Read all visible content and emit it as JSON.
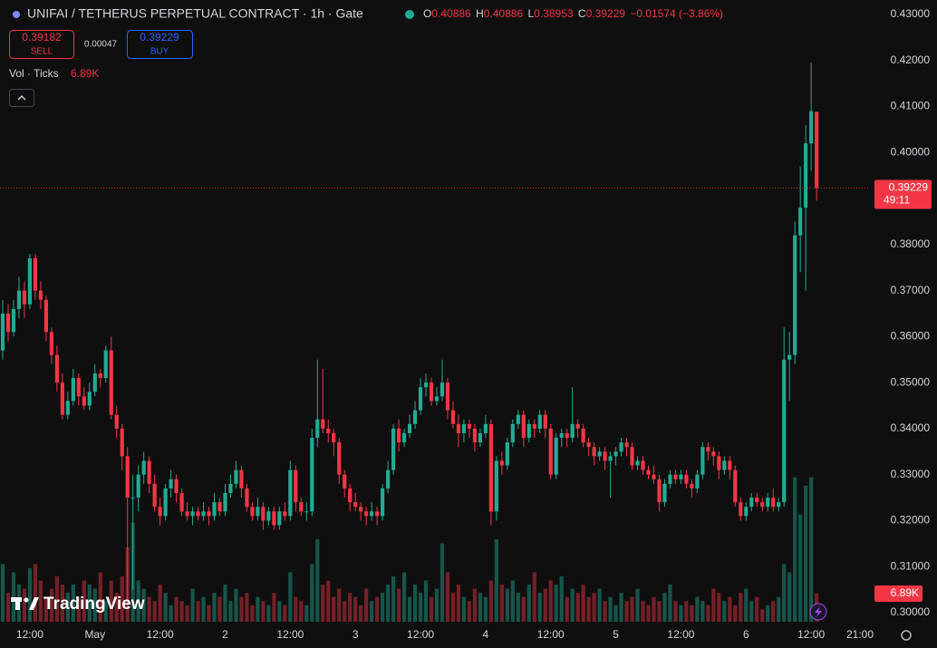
{
  "chart_data": {
    "type": "candlestick",
    "title": "UNIFAI / TETHERUS PERPETUAL CONTRACT · 1h · Gate",
    "ohlc_labels": [
      "O",
      "H",
      "L",
      "C"
    ],
    "change_label": "−0.01574 (−3.86%)",
    "sell": {
      "price": 0.39182,
      "label": "SELL"
    },
    "spread": 0.00047,
    "buy": {
      "price": 0.39229,
      "label": "BUY"
    },
    "volume_title": "Vol · Ticks",
    "volume_last_label": "6.89K",
    "countdown": "49:11",
    "brand": "TradingView",
    "up_color": "#22ab94",
    "down_color": "#f23645",
    "grid": false,
    "xlim": [
      -0.5,
      159.5
    ],
    "xticks": [
      {
        "value": 5,
        "label": "12:00"
      },
      {
        "value": 17,
        "label": "May"
      },
      {
        "value": 29,
        "label": "12:00"
      },
      {
        "value": 41,
        "label": "2"
      },
      {
        "value": 53,
        "label": "12:00"
      },
      {
        "value": 65,
        "label": "3"
      },
      {
        "value": 77,
        "label": "12:00"
      },
      {
        "value": 89,
        "label": "4"
      },
      {
        "value": 101,
        "label": "12:00"
      },
      {
        "value": 113,
        "label": "5"
      },
      {
        "value": 125,
        "label": "12:00"
      },
      {
        "value": 137,
        "label": "6"
      },
      {
        "value": 149,
        "label": "12:00"
      },
      {
        "value": 158,
        "label": "21:00"
      }
    ],
    "ylim": [
      0.3,
      0.43
    ],
    "yticks": [
      {
        "value": 0.3,
        "label": "0.30000"
      },
      {
        "value": 0.31,
        "label": "0.31000"
      },
      {
        "value": 0.32,
        "label": "0.32000"
      },
      {
        "value": 0.33,
        "label": "0.33000"
      },
      {
        "value": 0.34,
        "label": "0.34000"
      },
      {
        "value": 0.35,
        "label": "0.35000"
      },
      {
        "value": 0.36,
        "label": "0.36000"
      },
      {
        "value": 0.37,
        "label": "0.37000"
      },
      {
        "value": 0.38,
        "label": "0.38000"
      },
      {
        "value": 0.39,
        "label": "0.39000"
      },
      {
        "value": 0.4,
        "label": "0.40000"
      },
      {
        "value": 0.41,
        "label": "0.41000"
      },
      {
        "value": 0.42,
        "label": "0.42000"
      },
      {
        "value": 0.43,
        "label": "0.43000"
      }
    ],
    "vlim": [
      0,
      38000
    ],
    "ohlc": [
      [
        0.357,
        0.368,
        0.355,
        0.365
      ],
      [
        0.365,
        0.367,
        0.359,
        0.361
      ],
      [
        0.361,
        0.368,
        0.36,
        0.366
      ],
      [
        0.366,
        0.373,
        0.364,
        0.37
      ],
      [
        0.37,
        0.372,
        0.364,
        0.367
      ],
      [
        0.367,
        0.378,
        0.366,
        0.377
      ],
      [
        0.377,
        0.378,
        0.368,
        0.37
      ],
      [
        0.37,
        0.372,
        0.366,
        0.368
      ],
      [
        0.368,
        0.369,
        0.359,
        0.361
      ],
      [
        0.361,
        0.362,
        0.354,
        0.356
      ],
      [
        0.356,
        0.358,
        0.348,
        0.35
      ],
      [
        0.35,
        0.352,
        0.342,
        0.343
      ],
      [
        0.343,
        0.348,
        0.342,
        0.346
      ],
      [
        0.346,
        0.353,
        0.345,
        0.351
      ],
      [
        0.351,
        0.352,
        0.345,
        0.347
      ],
      [
        0.347,
        0.349,
        0.344,
        0.345
      ],
      [
        0.345,
        0.35,
        0.344,
        0.348
      ],
      [
        0.348,
        0.354,
        0.347,
        0.352
      ],
      [
        0.352,
        0.353,
        0.349,
        0.351
      ],
      [
        0.351,
        0.358,
        0.35,
        0.357
      ],
      [
        0.357,
        0.36,
        0.342,
        0.343
      ],
      [
        0.343,
        0.345,
        0.338,
        0.34
      ],
      [
        0.34,
        0.341,
        0.331,
        0.334
      ],
      [
        0.334,
        0.336,
        0.301,
        0.325
      ],
      [
        0.325,
        0.33,
        0.305,
        0.325
      ],
      [
        0.325,
        0.332,
        0.322,
        0.33
      ],
      [
        0.33,
        0.335,
        0.328,
        0.333
      ],
      [
        0.333,
        0.334,
        0.326,
        0.328
      ],
      [
        0.328,
        0.33,
        0.322,
        0.323
      ],
      [
        0.323,
        0.325,
        0.319,
        0.321
      ],
      [
        0.321,
        0.328,
        0.32,
        0.327
      ],
      [
        0.327,
        0.331,
        0.325,
        0.329
      ],
      [
        0.329,
        0.33,
        0.324,
        0.326
      ],
      [
        0.326,
        0.327,
        0.321,
        0.322
      ],
      [
        0.322,
        0.324,
        0.32,
        0.321
      ],
      [
        0.321,
        0.323,
        0.319,
        0.322
      ],
      [
        0.322,
        0.323,
        0.32,
        0.321
      ],
      [
        0.321,
        0.324,
        0.32,
        0.322
      ],
      [
        0.322,
        0.323,
        0.319,
        0.321
      ],
      [
        0.321,
        0.326,
        0.32,
        0.324
      ],
      [
        0.324,
        0.325,
        0.321,
        0.322
      ],
      [
        0.322,
        0.328,
        0.321,
        0.326
      ],
      [
        0.326,
        0.33,
        0.325,
        0.328
      ],
      [
        0.328,
        0.333,
        0.327,
        0.331
      ],
      [
        0.331,
        0.332,
        0.325,
        0.327
      ],
      [
        0.327,
        0.328,
        0.322,
        0.323
      ],
      [
        0.323,
        0.324,
        0.32,
        0.321
      ],
      [
        0.321,
        0.325,
        0.32,
        0.323
      ],
      [
        0.323,
        0.324,
        0.318,
        0.32
      ],
      [
        0.32,
        0.323,
        0.319,
        0.322
      ],
      [
        0.322,
        0.323,
        0.318,
        0.319
      ],
      [
        0.319,
        0.323,
        0.318,
        0.322
      ],
      [
        0.322,
        0.324,
        0.32,
        0.321
      ],
      [
        0.321,
        0.333,
        0.32,
        0.331
      ],
      [
        0.331,
        0.332,
        0.322,
        0.324
      ],
      [
        0.324,
        0.325,
        0.321,
        0.322
      ],
      [
        0.322,
        0.324,
        0.32,
        0.322
      ],
      [
        0.322,
        0.34,
        0.321,
        0.338
      ],
      [
        0.338,
        0.355,
        0.336,
        0.342
      ],
      [
        0.342,
        0.353,
        0.339,
        0.34
      ],
      [
        0.34,
        0.342,
        0.337,
        0.339
      ],
      [
        0.339,
        0.34,
        0.334,
        0.337
      ],
      [
        0.337,
        0.338,
        0.328,
        0.33
      ],
      [
        0.33,
        0.331,
        0.325,
        0.327
      ],
      [
        0.327,
        0.328,
        0.322,
        0.324
      ],
      [
        0.324,
        0.326,
        0.322,
        0.323
      ],
      [
        0.323,
        0.324,
        0.32,
        0.322
      ],
      [
        0.322,
        0.323,
        0.319,
        0.321
      ],
      [
        0.321,
        0.324,
        0.32,
        0.322
      ],
      [
        0.322,
        0.323,
        0.319,
        0.321
      ],
      [
        0.321,
        0.328,
        0.32,
        0.327
      ],
      [
        0.327,
        0.333,
        0.326,
        0.331
      ],
      [
        0.331,
        0.341,
        0.33,
        0.34
      ],
      [
        0.34,
        0.342,
        0.335,
        0.337
      ],
      [
        0.337,
        0.34,
        0.336,
        0.339
      ],
      [
        0.339,
        0.343,
        0.338,
        0.341
      ],
      [
        0.341,
        0.346,
        0.34,
        0.344
      ],
      [
        0.344,
        0.351,
        0.343,
        0.349
      ],
      [
        0.349,
        0.352,
        0.347,
        0.35
      ],
      [
        0.35,
        0.351,
        0.345,
        0.346
      ],
      [
        0.346,
        0.349,
        0.345,
        0.347
      ],
      [
        0.347,
        0.355,
        0.346,
        0.35
      ],
      [
        0.35,
        0.351,
        0.342,
        0.344
      ],
      [
        0.344,
        0.346,
        0.34,
        0.341
      ],
      [
        0.341,
        0.343,
        0.336,
        0.339
      ],
      [
        0.339,
        0.342,
        0.337,
        0.341
      ],
      [
        0.341,
        0.342,
        0.338,
        0.34
      ],
      [
        0.34,
        0.341,
        0.335,
        0.337
      ],
      [
        0.337,
        0.34,
        0.336,
        0.339
      ],
      [
        0.339,
        0.343,
        0.338,
        0.341
      ],
      [
        0.341,
        0.342,
        0.319,
        0.322
      ],
      [
        0.322,
        0.334,
        0.32,
        0.333
      ],
      [
        0.333,
        0.335,
        0.33,
        0.332
      ],
      [
        0.332,
        0.338,
        0.331,
        0.337
      ],
      [
        0.337,
        0.342,
        0.336,
        0.341
      ],
      [
        0.341,
        0.344,
        0.34,
        0.343
      ],
      [
        0.343,
        0.344,
        0.336,
        0.338
      ],
      [
        0.338,
        0.342,
        0.337,
        0.341
      ],
      [
        0.341,
        0.342,
        0.338,
        0.34
      ],
      [
        0.34,
        0.344,
        0.339,
        0.343
      ],
      [
        0.343,
        0.344,
        0.338,
        0.34
      ],
      [
        0.34,
        0.341,
        0.329,
        0.33
      ],
      [
        0.33,
        0.339,
        0.329,
        0.338
      ],
      [
        0.338,
        0.34,
        0.336,
        0.339
      ],
      [
        0.339,
        0.34,
        0.336,
        0.338
      ],
      [
        0.338,
        0.349,
        0.337,
        0.341
      ],
      [
        0.341,
        0.342,
        0.338,
        0.34
      ],
      [
        0.34,
        0.341,
        0.336,
        0.337
      ],
      [
        0.337,
        0.338,
        0.334,
        0.336
      ],
      [
        0.336,
        0.337,
        0.332,
        0.334
      ],
      [
        0.334,
        0.336,
        0.333,
        0.335
      ],
      [
        0.335,
        0.336,
        0.331,
        0.333
      ],
      [
        0.333,
        0.335,
        0.325,
        0.334
      ],
      [
        0.334,
        0.336,
        0.332,
        0.335
      ],
      [
        0.335,
        0.338,
        0.334,
        0.337
      ],
      [
        0.337,
        0.338,
        0.334,
        0.336
      ],
      [
        0.336,
        0.337,
        0.331,
        0.332
      ],
      [
        0.332,
        0.334,
        0.331,
        0.333
      ],
      [
        0.333,
        0.334,
        0.33,
        0.331
      ],
      [
        0.331,
        0.332,
        0.329,
        0.33
      ],
      [
        0.33,
        0.332,
        0.328,
        0.329
      ],
      [
        0.329,
        0.33,
        0.322,
        0.324
      ],
      [
        0.324,
        0.329,
        0.323,
        0.328
      ],
      [
        0.328,
        0.331,
        0.327,
        0.33
      ],
      [
        0.33,
        0.331,
        0.328,
        0.329
      ],
      [
        0.329,
        0.331,
        0.328,
        0.33
      ],
      [
        0.33,
        0.331,
        0.327,
        0.328
      ],
      [
        0.328,
        0.329,
        0.325,
        0.327
      ],
      [
        0.327,
        0.331,
        0.326,
        0.33
      ],
      [
        0.33,
        0.337,
        0.329,
        0.336
      ],
      [
        0.336,
        0.337,
        0.333,
        0.335
      ],
      [
        0.335,
        0.336,
        0.332,
        0.334
      ],
      [
        0.334,
        0.335,
        0.329,
        0.331
      ],
      [
        0.331,
        0.334,
        0.33,
        0.333
      ],
      [
        0.333,
        0.334,
        0.329,
        0.331
      ],
      [
        0.331,
        0.332,
        0.323,
        0.324
      ],
      [
        0.324,
        0.325,
        0.32,
        0.321
      ],
      [
        0.321,
        0.324,
        0.32,
        0.323
      ],
      [
        0.323,
        0.326,
        0.322,
        0.325
      ],
      [
        0.325,
        0.326,
        0.323,
        0.324
      ],
      [
        0.324,
        0.325,
        0.322,
        0.323
      ],
      [
        0.323,
        0.326,
        0.322,
        0.325
      ],
      [
        0.325,
        0.327,
        0.322,
        0.323
      ],
      [
        0.323,
        0.325,
        0.322,
        0.324
      ],
      [
        0.324,
        0.362,
        0.323,
        0.355
      ],
      [
        0.355,
        0.361,
        0.346,
        0.356
      ],
      [
        0.356,
        0.385,
        0.354,
        0.382
      ],
      [
        0.382,
        0.397,
        0.374,
        0.388
      ],
      [
        0.388,
        0.406,
        0.37,
        0.402
      ],
      [
        0.402,
        0.4195,
        0.396,
        0.409
      ],
      [
        0.40886,
        0.40886,
        0.38953,
        0.39229
      ]
    ],
    "volume": [
      14000,
      7000,
      12000,
      9000,
      8000,
      13000,
      14000,
      10000,
      6000,
      8000,
      11000,
      9000,
      7000,
      9000,
      6000,
      10000,
      9000,
      8000,
      12000,
      5000,
      10000,
      7000,
      11000,
      18000,
      24000,
      10000,
      8000,
      6000,
      5000,
      9000,
      7000,
      4000,
      6000,
      5000,
      4000,
      8000,
      5000,
      6000,
      4000,
      7000,
      6000,
      9000,
      5000,
      8000,
      6000,
      7000,
      4000,
      6000,
      5000,
      4000,
      7000,
      5000,
      4000,
      12000,
      6000,
      5000,
      4000,
      14000,
      20000,
      9000,
      10000,
      6000,
      8000,
      5000,
      7000,
      6000,
      4000,
      8000,
      5000,
      6000,
      7000,
      9000,
      11000,
      8000,
      12000,
      6000,
      9000,
      7000,
      10000,
      6000,
      8000,
      19000,
      12000,
      7000,
      9000,
      6000,
      5000,
      8000,
      7000,
      6000,
      10000,
      20000,
      9000,
      8000,
      10000,
      7000,
      6000,
      9000,
      12000,
      7000,
      8000,
      10000,
      9000,
      11000,
      6000,
      8000,
      7000,
      9000,
      6000,
      7000,
      8000,
      5000,
      6000,
      4000,
      7000,
      5000,
      6000,
      8000,
      5000,
      4000,
      6000,
      5000,
      7000,
      9000,
      5000,
      4000,
      5000,
      4000,
      6000,
      5000,
      4000,
      8000,
      7000,
      5000,
      6000,
      4000,
      7000,
      8000,
      5000,
      6000,
      3000,
      4000,
      5000,
      6000,
      14000,
      12000,
      35000,
      26000,
      33000,
      35000,
      6890
    ]
  }
}
